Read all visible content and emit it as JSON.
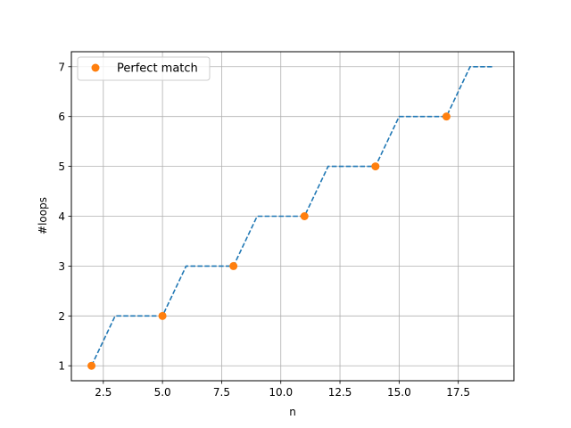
{
  "chart_data": {
    "type": "line",
    "xlabel": "n",
    "ylabel": "#loops",
    "xlim": [
      1.15,
      19.85
    ],
    "ylim": [
      0.7,
      7.3
    ],
    "xticks": [
      2.5,
      5.0,
      7.5,
      10.0,
      12.5,
      15.0,
      17.5
    ],
    "xtick_labels": [
      "2.5",
      "5.0",
      "7.5",
      "10.0",
      "12.5",
      "15.0",
      "17.5"
    ],
    "yticks": [
      1,
      2,
      3,
      4,
      5,
      6,
      7
    ],
    "ytick_labels": [
      "1",
      "2",
      "3",
      "4",
      "5",
      "6",
      "7"
    ],
    "grid": true,
    "legend_position": "top-left",
    "series": [
      {
        "style": "dashed-line",
        "color": "#1f77b4",
        "x": [
          2,
          3,
          4,
          5,
          6,
          7,
          8,
          9,
          10,
          11,
          12,
          13,
          14,
          15,
          16,
          17,
          18,
          19
        ],
        "y": [
          1,
          2,
          2,
          2,
          3,
          3,
          3,
          4,
          4,
          4,
          5,
          5,
          5,
          6,
          6,
          6,
          7,
          7
        ]
      },
      {
        "name": "Perfect match",
        "style": "markers",
        "color": "#ff7f0e",
        "x": [
          2,
          5,
          8,
          11,
          14,
          17
        ],
        "y": [
          1,
          2,
          3,
          4,
          5,
          6
        ]
      }
    ]
  }
}
